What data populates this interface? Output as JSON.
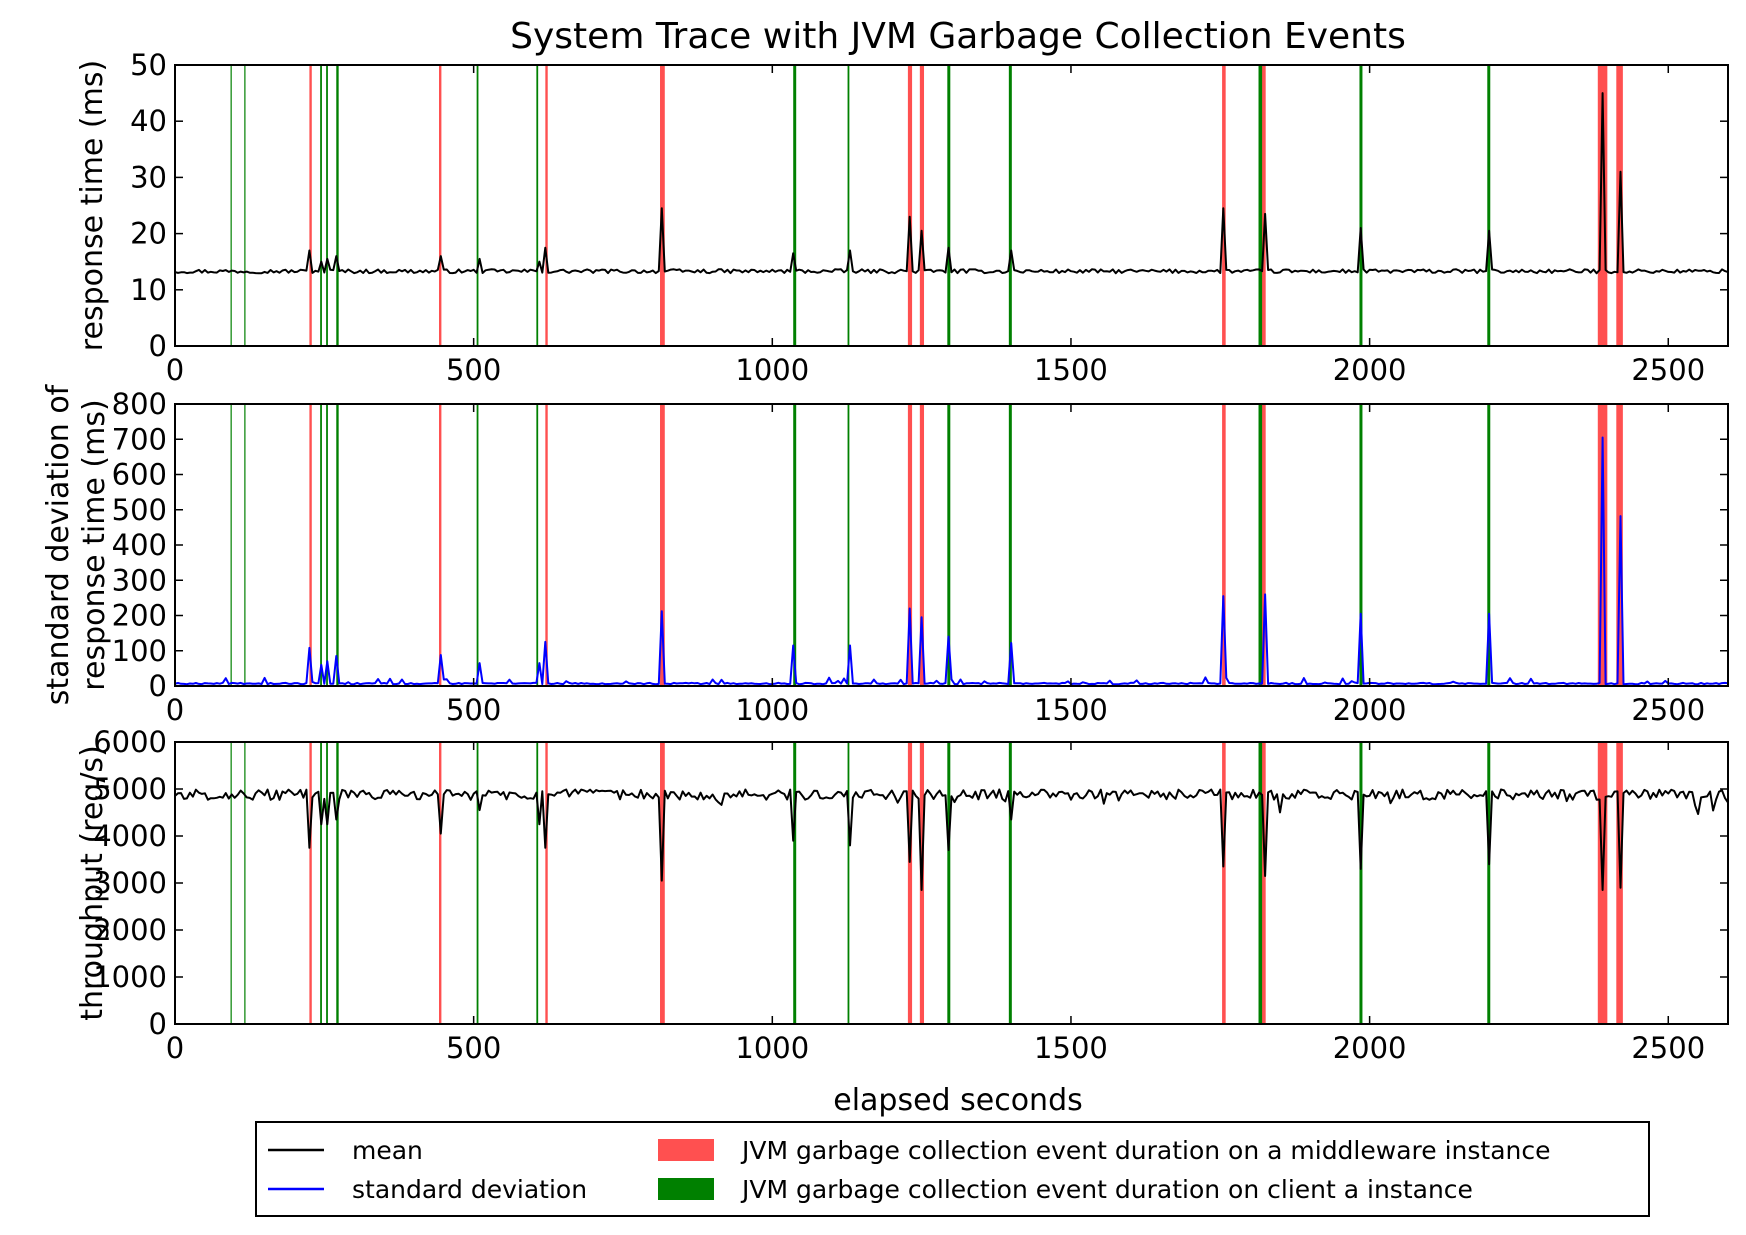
{
  "chart_data": {
    "type": "line",
    "title": "System Trace with JVM Garbage Collection Events",
    "xlabel": "elapsed seconds",
    "xlim": [
      0,
      2600
    ],
    "xticks": [
      0,
      500,
      1000,
      1500,
      2000,
      2500
    ],
    "colors": {
      "mean": "#000000",
      "std": "#0000ff",
      "gc_middleware": "#ff5050",
      "gc_client": "#008000"
    },
    "gc_events": {
      "middleware": [
        {
          "start": 225,
          "end": 229
        },
        {
          "start": 442,
          "end": 446
        },
        {
          "start": 620,
          "end": 624
        },
        {
          "start": 812,
          "end": 820
        },
        {
          "start": 1227,
          "end": 1234
        },
        {
          "start": 1247,
          "end": 1254
        },
        {
          "start": 1753,
          "end": 1759
        },
        {
          "start": 1819,
          "end": 1826
        },
        {
          "start": 2382,
          "end": 2398
        },
        {
          "start": 2413,
          "end": 2424
        }
      ],
      "client": [
        {
          "start": 93,
          "end": 95
        },
        {
          "start": 116,
          "end": 118
        },
        {
          "start": 243,
          "end": 246
        },
        {
          "start": 253,
          "end": 256
        },
        {
          "start": 270,
          "end": 274
        },
        {
          "start": 505,
          "end": 508
        },
        {
          "start": 605,
          "end": 608
        },
        {
          "start": 1035,
          "end": 1040
        },
        {
          "start": 1126,
          "end": 1129
        },
        {
          "start": 1293,
          "end": 1298
        },
        {
          "start": 1396,
          "end": 1401
        },
        {
          "start": 1814,
          "end": 1820
        },
        {
          "start": 1983,
          "end": 1988
        },
        {
          "start": 2197,
          "end": 2202
        }
      ]
    },
    "spikes": [
      {
        "x": 225,
        "mean": 17,
        "std": 108,
        "thr": 3750
      },
      {
        "x": 243,
        "mean": 15,
        "std": 60,
        "thr": 4250
      },
      {
        "x": 256,
        "mean": 15.5,
        "std": 70,
        "thr": 4250
      },
      {
        "x": 272,
        "mean": 16,
        "std": 85,
        "thr": 4350
      },
      {
        "x": 444,
        "mean": 16,
        "std": 88,
        "thr": 4050
      },
      {
        "x": 508,
        "mean": 15.5,
        "std": 65,
        "thr": 4550
      },
      {
        "x": 608,
        "mean": 15,
        "std": 65,
        "thr": 4250
      },
      {
        "x": 620,
        "mean": 17.5,
        "std": 125,
        "thr": 3750
      },
      {
        "x": 816,
        "mean": 24.5,
        "std": 212,
        "thr": 3050
      },
      {
        "x": 1037,
        "mean": 16.5,
        "std": 115,
        "thr": 3900
      },
      {
        "x": 1128,
        "mean": 17,
        "std": 115,
        "thr": 3800
      },
      {
        "x": 1230,
        "mean": 23,
        "std": 220,
        "thr": 3450
      },
      {
        "x": 1252,
        "mean": 20.5,
        "std": 195,
        "thr": 2850
      },
      {
        "x": 1295,
        "mean": 17.5,
        "std": 140,
        "thr": 3700
      },
      {
        "x": 1399,
        "mean": 17,
        "std": 122,
        "thr": 4350
      },
      {
        "x": 1756,
        "mean": 24.5,
        "std": 255,
        "thr": 3350
      },
      {
        "x": 1823,
        "mean": 23.5,
        "std": 260,
        "thr": 3150
      },
      {
        "x": 1986,
        "mean": 21,
        "std": 205,
        "thr": 3300
      },
      {
        "x": 2199,
        "mean": 20.5,
        "std": 205,
        "thr": 3400
      },
      {
        "x": 2390,
        "mean": 45,
        "std": 705,
        "thr": 2850
      },
      {
        "x": 2418,
        "mean": 31,
        "std": 482,
        "thr": 2900
      }
    ],
    "panels": [
      {
        "key": "mean",
        "ylabel": [
          "response time (ms)"
        ],
        "ylim": [
          0,
          50
        ],
        "yticks": [
          0,
          10,
          20,
          30,
          40,
          50
        ],
        "baseline": 13.3,
        "noise": 0.35,
        "series": "mean"
      },
      {
        "key": "std",
        "ylabel": [
          "standard deviation of",
          "response time (ms)"
        ],
        "ylim": [
          0,
          800
        ],
        "yticks": [
          0,
          100,
          200,
          300,
          400,
          500,
          600,
          700,
          800
        ],
        "baseline": 5,
        "noise": 4,
        "series": "std"
      },
      {
        "key": "thr",
        "ylabel": [
          "throughput (req/s)"
        ],
        "ylim": [
          0,
          6000
        ],
        "yticks": [
          0,
          1000,
          2000,
          3000,
          4000,
          5000,
          6000
        ],
        "baseline": 4880,
        "noise": 110,
        "series": "mean"
      }
    ],
    "legend": {
      "placement": "bottom-center",
      "entries": [
        {
          "label": "mean",
          "kind": "line",
          "color_key": "mean"
        },
        {
          "label": "JVM garbage collection event duration on a middleware instance",
          "kind": "patch",
          "color_key": "gc_middleware"
        },
        {
          "label": "standard deviation",
          "kind": "line",
          "color_key": "std"
        },
        {
          "label": "JVM garbage collection event duration on client a instance",
          "kind": "patch",
          "color_key": "gc_client"
        }
      ]
    },
    "grid": false
  }
}
